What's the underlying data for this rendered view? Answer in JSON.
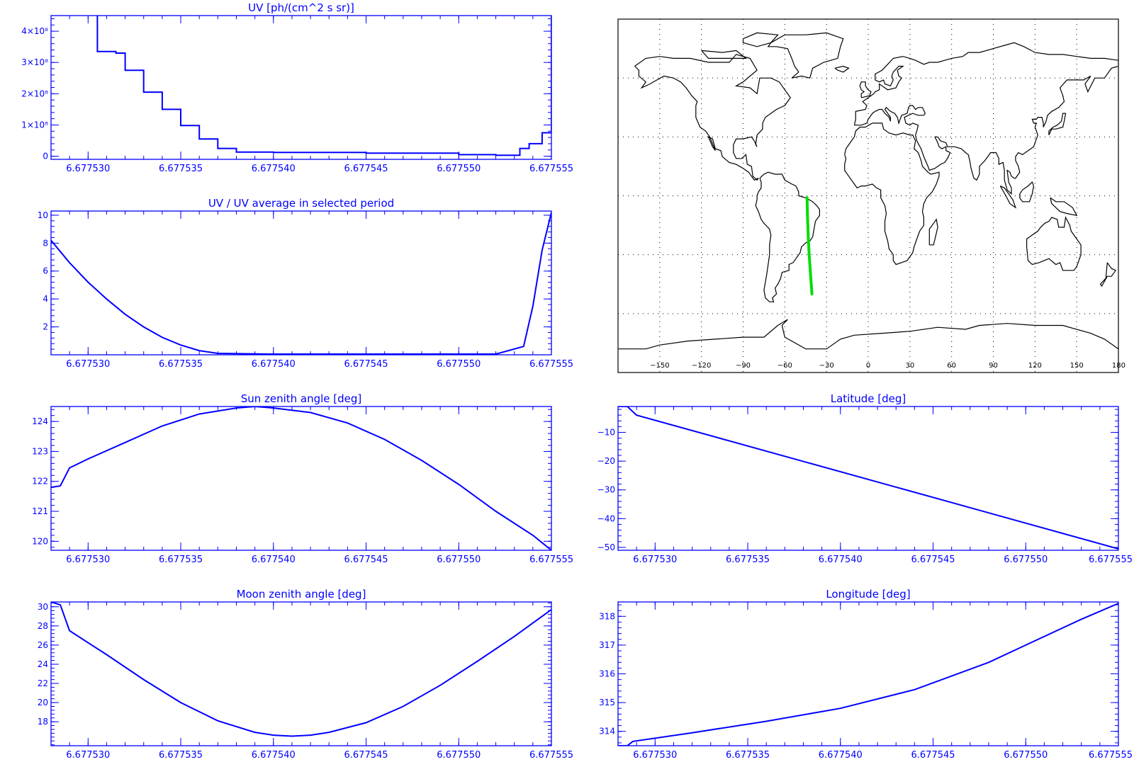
{
  "colors": {
    "axis": "#0000ff",
    "line": "#0000ff",
    "map_axis": "#000000",
    "coast": "#000000",
    "track": "#00dd00",
    "background": "#ffffff"
  },
  "chart_data": [
    {
      "id": "uv",
      "type": "line",
      "step": true,
      "title": "UV [ph/(cm^2 s sr)]",
      "xlim": [
        6.677528,
        6.677555
      ],
      "ylim": [
        -0.1,
        4.5
      ],
      "xticks": [
        6.67753,
        6.677535,
        6.67754,
        6.677545,
        6.67755,
        6.677555
      ],
      "xticklabels": [
        "6.677530",
        "6.677535",
        "6.677540",
        "6.677545",
        "6.677550",
        "6.677555"
      ],
      "yticks": [
        0,
        1,
        2,
        3,
        4
      ],
      "yticklabels": [
        "0",
        "1×10⁸",
        "2×10⁸",
        "3×10⁸",
        "4×10⁸"
      ],
      "series": [
        {
          "x": [
            6.67753,
            6.6775305,
            6.6775315,
            6.677532,
            6.677533,
            6.677534,
            6.677535,
            6.677536,
            6.677537,
            6.677538,
            6.67754,
            6.677545,
            6.67755,
            6.677552,
            6.6775533,
            6.6775538,
            6.6775545,
            6.677555
          ],
          "y": [
            4.6,
            3.35,
            3.3,
            2.75,
            2.05,
            1.5,
            0.98,
            0.55,
            0.25,
            0.13,
            0.12,
            0.1,
            0.05,
            0.03,
            0.25,
            0.4,
            0.75,
            4.6
          ]
        }
      ]
    },
    {
      "id": "uv_ratio",
      "type": "line",
      "title": "UV / UV average in selected period",
      "xlim": [
        6.677528,
        6.677555
      ],
      "ylim": [
        0,
        10.3
      ],
      "xticks": [
        6.67753,
        6.677535,
        6.67754,
        6.677545,
        6.67755,
        6.677555
      ],
      "xticklabels": [
        "6.677530",
        "6.677535",
        "6.677540",
        "6.677545",
        "6.677550",
        "6.677555"
      ],
      "yticks": [
        2,
        4,
        6,
        8,
        10
      ],
      "yticklabels": [
        "2",
        "4",
        "6",
        "8",
        "10"
      ],
      "series": [
        {
          "x": [
            6.677528,
            6.677529,
            6.67753,
            6.677531,
            6.677532,
            6.677533,
            6.677534,
            6.677535,
            6.677536,
            6.677537,
            6.67754,
            6.677545,
            6.67755,
            6.677552,
            6.6775535,
            6.677554,
            6.6775545,
            6.677555
          ],
          "y": [
            8.2,
            6.6,
            5.2,
            4.0,
            2.9,
            2.0,
            1.25,
            0.7,
            0.3,
            0.1,
            0.05,
            0.05,
            0.05,
            0.05,
            0.6,
            3.5,
            7.5,
            10.2
          ]
        }
      ]
    },
    {
      "id": "sun",
      "type": "line",
      "title": "Sun zenith angle [deg]",
      "xlim": [
        6.677528,
        6.677555
      ],
      "ylim": [
        119.7,
        124.5
      ],
      "xticks": [
        6.67753,
        6.677535,
        6.67754,
        6.677545,
        6.67755,
        6.677555
      ],
      "xticklabels": [
        "6.677530",
        "6.677535",
        "6.677540",
        "6.677545",
        "6.677550",
        "6.677555"
      ],
      "yticks": [
        120,
        121,
        122,
        123,
        124
      ],
      "yticklabels": [
        "120",
        "121",
        "122",
        "123",
        "124"
      ],
      "series": [
        {
          "x": [
            6.677528,
            6.6775285,
            6.677529,
            6.67753,
            6.677532,
            6.677534,
            6.677536,
            6.677538,
            6.677539,
            6.67754,
            6.677542,
            6.677544,
            6.677546,
            6.677548,
            6.67755,
            6.677552,
            6.677554,
            6.677555
          ],
          "y": [
            121.8,
            121.85,
            122.45,
            122.75,
            123.3,
            123.85,
            124.25,
            124.45,
            124.5,
            124.45,
            124.3,
            123.95,
            123.4,
            122.7,
            121.9,
            121.0,
            120.2,
            119.7
          ]
        }
      ]
    },
    {
      "id": "moon",
      "type": "line",
      "title": "Moon zenith angle [deg]",
      "xlim": [
        6.677528,
        6.677555
      ],
      "ylim": [
        15.5,
        30.5
      ],
      "xticks": [
        6.67753,
        6.677535,
        6.67754,
        6.677545,
        6.67755,
        6.677555
      ],
      "xticklabels": [
        "6.677530",
        "6.677535",
        "6.677540",
        "6.677545",
        "6.677550",
        "6.677555"
      ],
      "yticks": [
        18,
        20,
        22,
        24,
        26,
        28,
        30
      ],
      "yticklabels": [
        "18",
        "20",
        "22",
        "24",
        "26",
        "28",
        "30"
      ],
      "series": [
        {
          "x": [
            6.677528,
            6.6775285,
            6.677529,
            6.677531,
            6.677533,
            6.677535,
            6.677537,
            6.677539,
            6.67754,
            6.677541,
            6.677542,
            6.677543,
            6.677545,
            6.677547,
            6.677549,
            6.677551,
            6.677553,
            6.677555
          ],
          "y": [
            30.5,
            30.2,
            27.5,
            25.0,
            22.4,
            20.0,
            18.1,
            16.9,
            16.6,
            16.5,
            16.6,
            16.9,
            17.9,
            19.6,
            21.8,
            24.3,
            26.9,
            29.7
          ]
        }
      ]
    },
    {
      "id": "latitude",
      "type": "line",
      "title": "Latitude [deg]",
      "xlim": [
        6.677528,
        6.677555
      ],
      "ylim": [
        -51,
        -1
      ],
      "xticks": [
        6.67753,
        6.677535,
        6.67754,
        6.677545,
        6.67755,
        6.677555
      ],
      "xticklabels": [
        "6.677530",
        "6.677535",
        "6.677540",
        "6.677545",
        "6.677550",
        "6.677555"
      ],
      "yticks": [
        -10,
        -20,
        -30,
        -40,
        -50
      ],
      "yticklabels": [
        "−10",
        "−20",
        "−30",
        "−40",
        "−50"
      ],
      "series": [
        {
          "x": [
            6.677528,
            6.6775285,
            6.677529,
            6.677555
          ],
          "y": [
            -1,
            -1,
            -4,
            -50.5
          ]
        }
      ]
    },
    {
      "id": "longitude",
      "type": "line",
      "title": "Longitude [deg]",
      "xlim": [
        6.677528,
        6.677555
      ],
      "ylim": [
        313.5,
        318.5
      ],
      "xticks": [
        6.67753,
        6.677535,
        6.67754,
        6.677545,
        6.67755,
        6.677555
      ],
      "xticklabels": [
        "6.677530",
        "6.677535",
        "6.677540",
        "6.677545",
        "6.677550",
        "6.677555"
      ],
      "yticks": [
        314,
        315,
        316,
        317,
        318
      ],
      "yticklabels": [
        "314",
        "315",
        "316",
        "317",
        "318"
      ],
      "series": [
        {
          "x": [
            6.677528,
            6.6775285,
            6.6775288,
            6.677532,
            6.677536,
            6.67754,
            6.677544,
            6.677548,
            6.67755,
            6.677553,
            6.677555
          ],
          "y": [
            313.5,
            313.5,
            313.65,
            313.95,
            314.35,
            314.8,
            315.45,
            316.4,
            317.0,
            317.9,
            318.45
          ]
        }
      ]
    }
  ],
  "map": {
    "lon_ticks": [
      -150,
      -120,
      -90,
      -60,
      -30,
      0,
      30,
      60,
      90,
      120,
      150,
      180
    ],
    "lon_labels": [
      "−150",
      "−120",
      "−90",
      "−60",
      "−30",
      "0",
      "30",
      "60",
      "90",
      "120",
      "150",
      "180"
    ],
    "lat_grid": [
      -60,
      -30,
      0,
      30,
      60
    ],
    "xlim": [
      -180,
      180
    ],
    "ylim": [
      -90,
      90
    ],
    "track": {
      "lon": [
        -44,
        -43.7,
        -43.2,
        -42.5,
        -41.5,
        -40.5
      ],
      "lat": [
        -1,
        -10,
        -20,
        -30,
        -40,
        -50
      ]
    }
  }
}
